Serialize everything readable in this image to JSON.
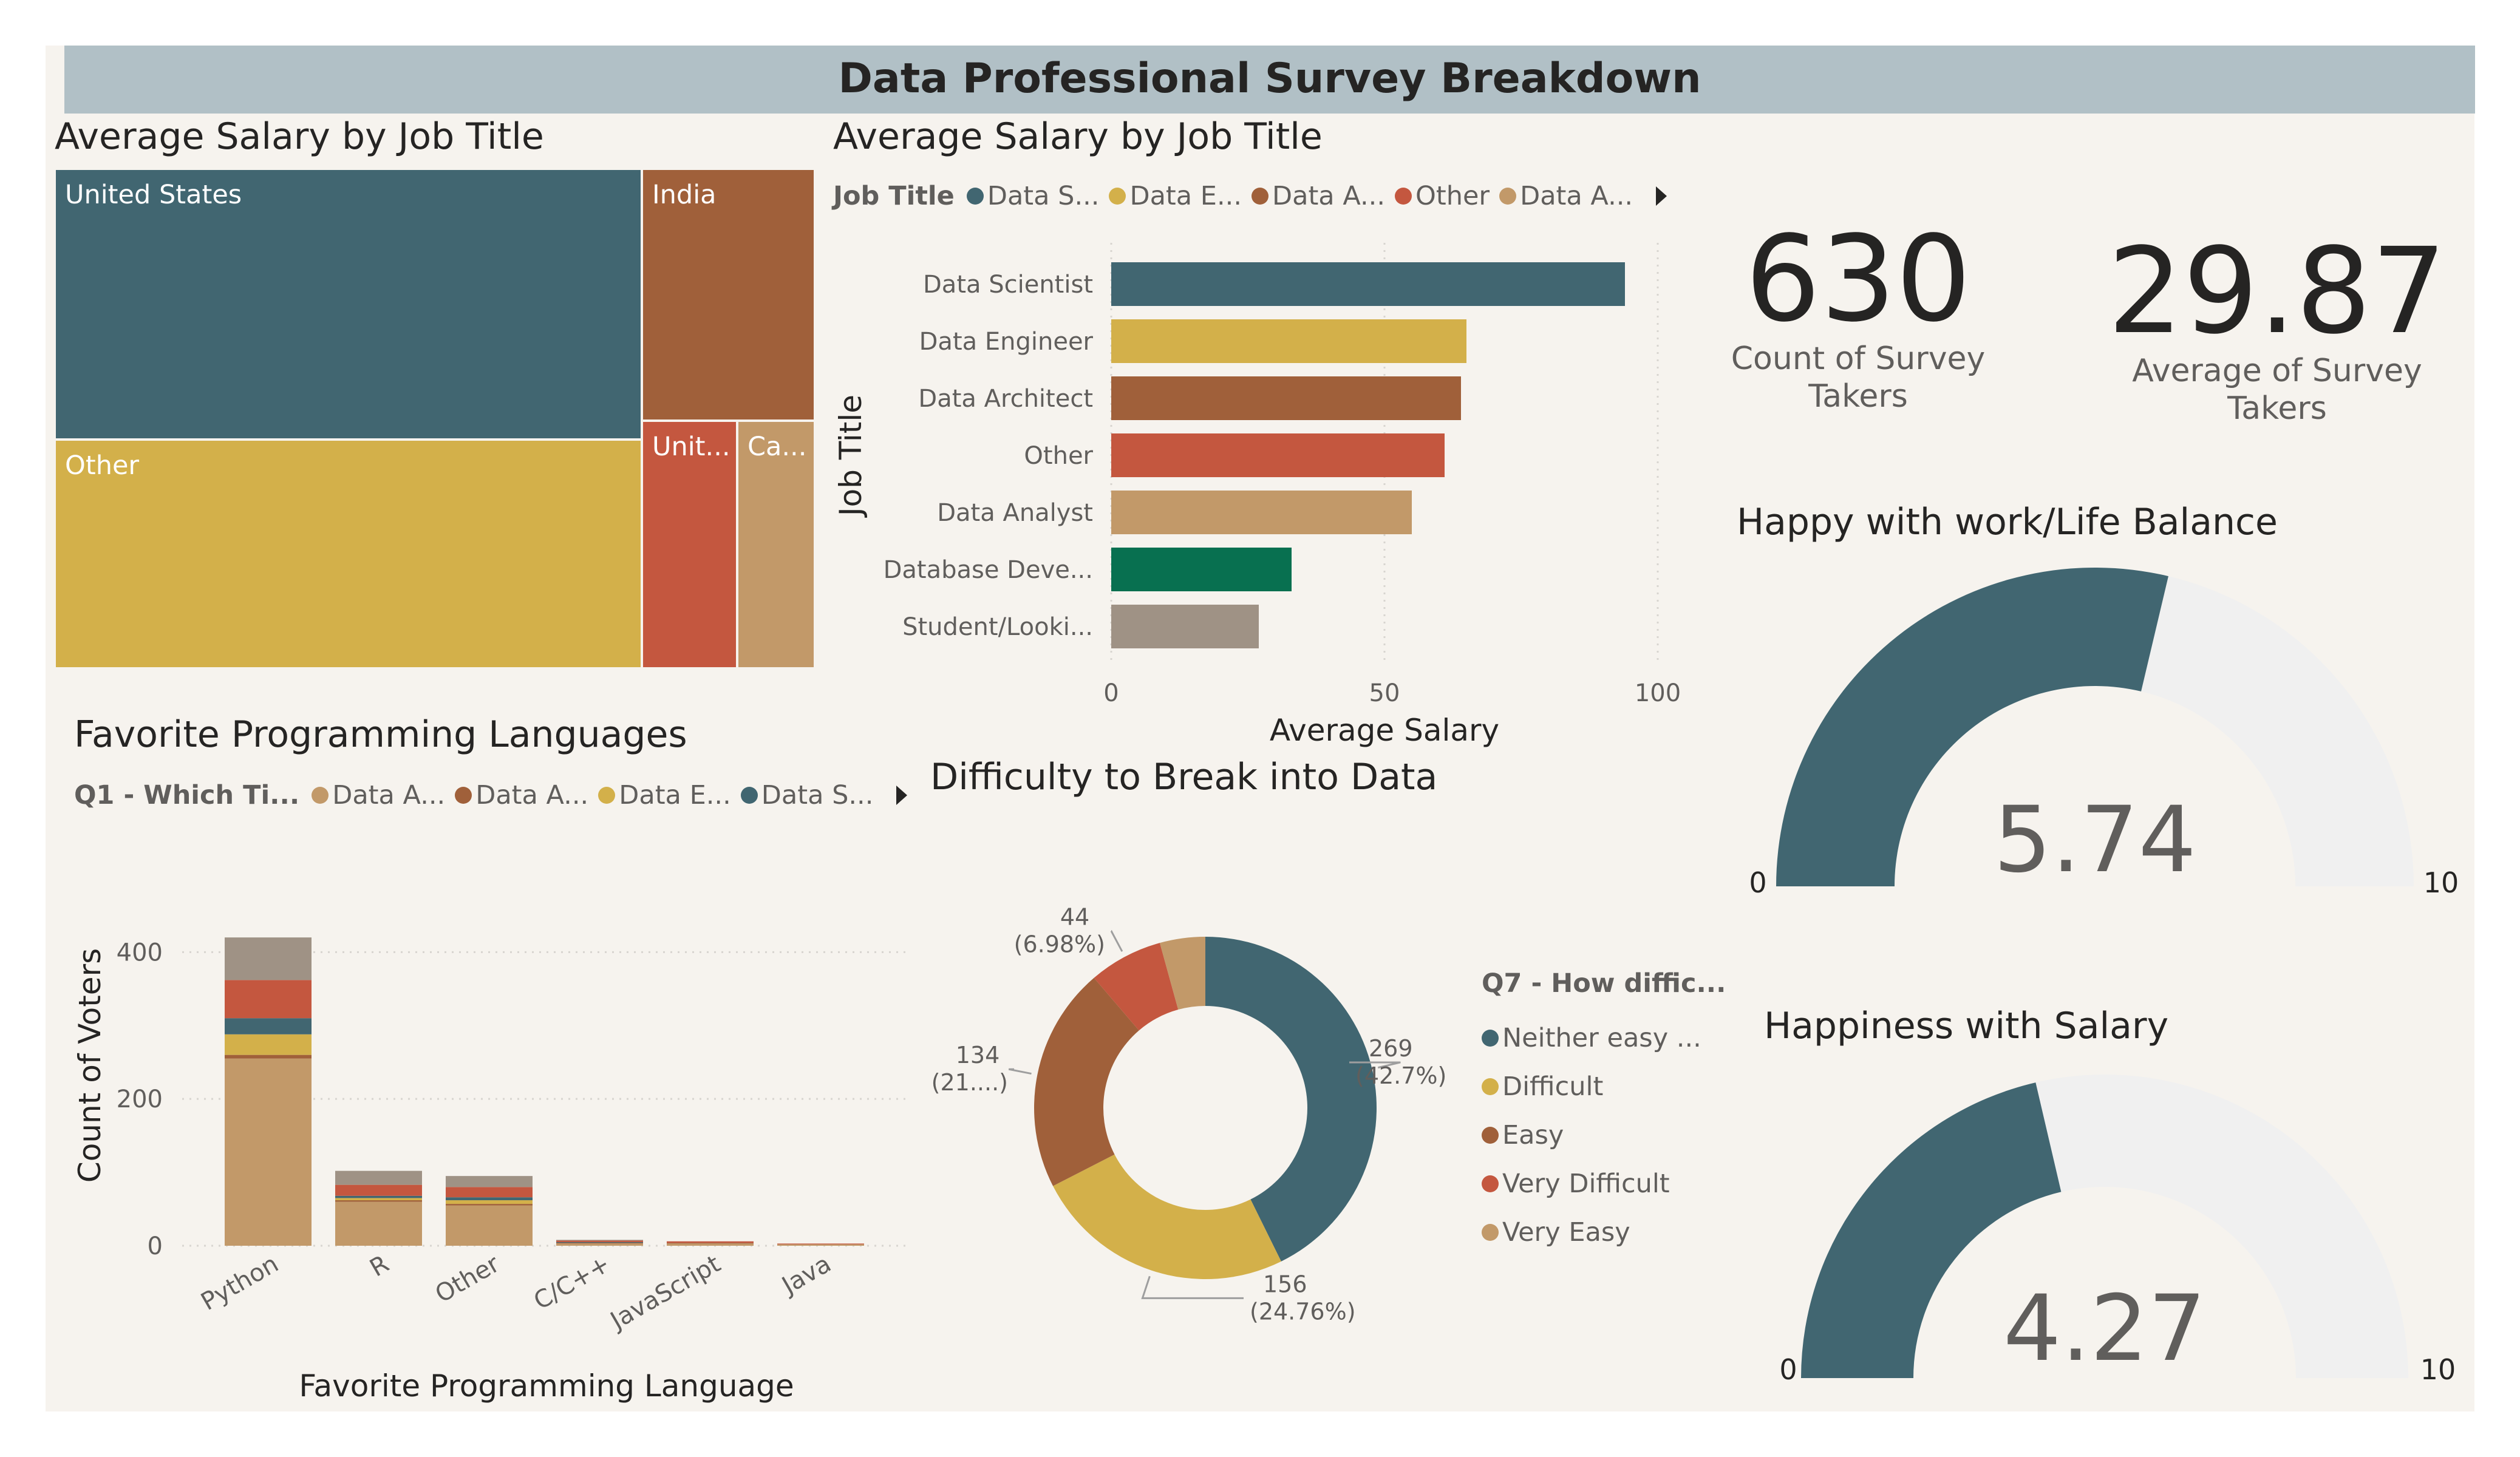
{
  "header": {
    "title": "Data Professional Survey Breakdown"
  },
  "colors": {
    "teal": "#416671",
    "gold": "#d3b04a",
    "brown": "#a0603a",
    "orange": "#c4573f",
    "tan": "#c29969",
    "green": "#087050",
    "grey": "#9f9285",
    "background": "#f6f3ee",
    "header_bg": "#b1c0c6",
    "gauge_track": "#f0f0f0"
  },
  "treemap": {
    "title": "Average Salary by Job Title",
    "chart_data": {
      "type": "treemap",
      "items": [
        {
          "label": "United States",
          "color": "#416671"
        },
        {
          "label": "India",
          "color": "#a0603a"
        },
        {
          "label": "Other",
          "color": "#d3b04a"
        },
        {
          "label": "Unit...",
          "color": "#c4573f"
        },
        {
          "label": "Ca...",
          "color": "#c29969"
        }
      ]
    }
  },
  "bar_chart": {
    "title": "Average Salary by Job Title",
    "legend": {
      "title": "Job Title",
      "items": [
        {
          "label": "Data S...",
          "color": "#416671"
        },
        {
          "label": "Data E...",
          "color": "#d3b04a"
        },
        {
          "label": "Data A...",
          "color": "#a0603a"
        },
        {
          "label": "Other",
          "color": "#c4573f"
        },
        {
          "label": "Data A...",
          "color": "#c29969"
        }
      ]
    },
    "chart_data": {
      "type": "bar",
      "orientation": "horizontal",
      "categories": [
        "Data Scientist",
        "Data Engineer",
        "Data Architect",
        "Other",
        "Data Analyst",
        "Database Deve...",
        "Student/Looki..."
      ],
      "values": [
        94,
        65,
        64,
        61,
        55,
        33,
        27
      ],
      "colors": [
        "#416671",
        "#d3b04a",
        "#a0603a",
        "#c4573f",
        "#c29969",
        "#087050",
        "#9f9285"
      ],
      "xlabel": "Average Salary",
      "ylabel": "Job Title",
      "xlim": [
        0,
        100
      ],
      "xticks": [
        "0",
        "50",
        "100"
      ],
      "grid": true
    }
  },
  "kpis": [
    {
      "value": "630",
      "label_line1": "Count of Survey",
      "label_line2": "Takers"
    },
    {
      "value": "29.87",
      "label_line1": "Average of Survey",
      "label_line2": "Takers"
    }
  ],
  "gauges": [
    {
      "title": "Happy with work/Life Balance",
      "value": 5.74,
      "value_text": "5.74",
      "min": 0,
      "max": 10,
      "min_label": "0",
      "max_label": "10"
    },
    {
      "title": "Happiness with Salary",
      "value": 4.27,
      "value_text": "4.27",
      "min": 0,
      "max": 10,
      "min_label": "0",
      "max_label": "10"
    }
  ],
  "stacked_chart": {
    "title": "Favorite Programming Languages",
    "legend": {
      "title": "Q1 - Which Ti...",
      "items": [
        {
          "label": "Data A...",
          "color": "#c29969"
        },
        {
          "label": "Data A...",
          "color": "#a0603a"
        },
        {
          "label": "Data E...",
          "color": "#d3b04a"
        },
        {
          "label": "Data S...",
          "color": "#416671"
        }
      ]
    },
    "chart_data": {
      "type": "bar",
      "stacked": true,
      "categories": [
        "Python",
        "R",
        "Other",
        "C/C++",
        "JavaScript",
        "Java"
      ],
      "series": [
        {
          "color": "#c29969",
          "values": [
            255,
            60,
            55,
            3,
            3,
            2
          ]
        },
        {
          "color": "#a0603a",
          "values": [
            5,
            2,
            2,
            1,
            1,
            0
          ]
        },
        {
          "color": "#d3b04a",
          "values": [
            28,
            3,
            5,
            0,
            0,
            0
          ]
        },
        {
          "color": "#416671",
          "values": [
            22,
            3,
            4,
            1,
            0,
            0
          ]
        },
        {
          "color": "#c4573f",
          "values": [
            52,
            15,
            14,
            2,
            2,
            1
          ]
        },
        {
          "color": "#9f9285",
          "values": [
            58,
            19,
            15,
            1,
            0,
            0
          ]
        }
      ],
      "xlabel": "Favorite Programming Language",
      "ylabel": "Count of Voters",
      "ylim": [
        0,
        440
      ],
      "yticks": [
        "0",
        "200",
        "400"
      ],
      "grid": true
    }
  },
  "donut": {
    "title": "Difficulty to Break into Data",
    "legend_title": "Q7 - How diffic...",
    "chart_data": {
      "type": "pie",
      "variant": "donut",
      "labels": [
        "Neither easy ...",
        "Difficult",
        "Easy",
        "Very Difficult",
        "Very Easy"
      ],
      "values": [
        269,
        156,
        134,
        44,
        27
      ],
      "colors": [
        "#416671",
        "#d3b04a",
        "#a0603a",
        "#c4573f",
        "#c29969"
      ],
      "data_labels": [
        {
          "count": "269",
          "pct": "(42.7%)"
        },
        {
          "count": "156",
          "pct": "(24.76%)"
        },
        {
          "count": "134",
          "pct": "(21....)"
        },
        {
          "count": "44",
          "pct": "(6.98%)"
        }
      ]
    }
  }
}
